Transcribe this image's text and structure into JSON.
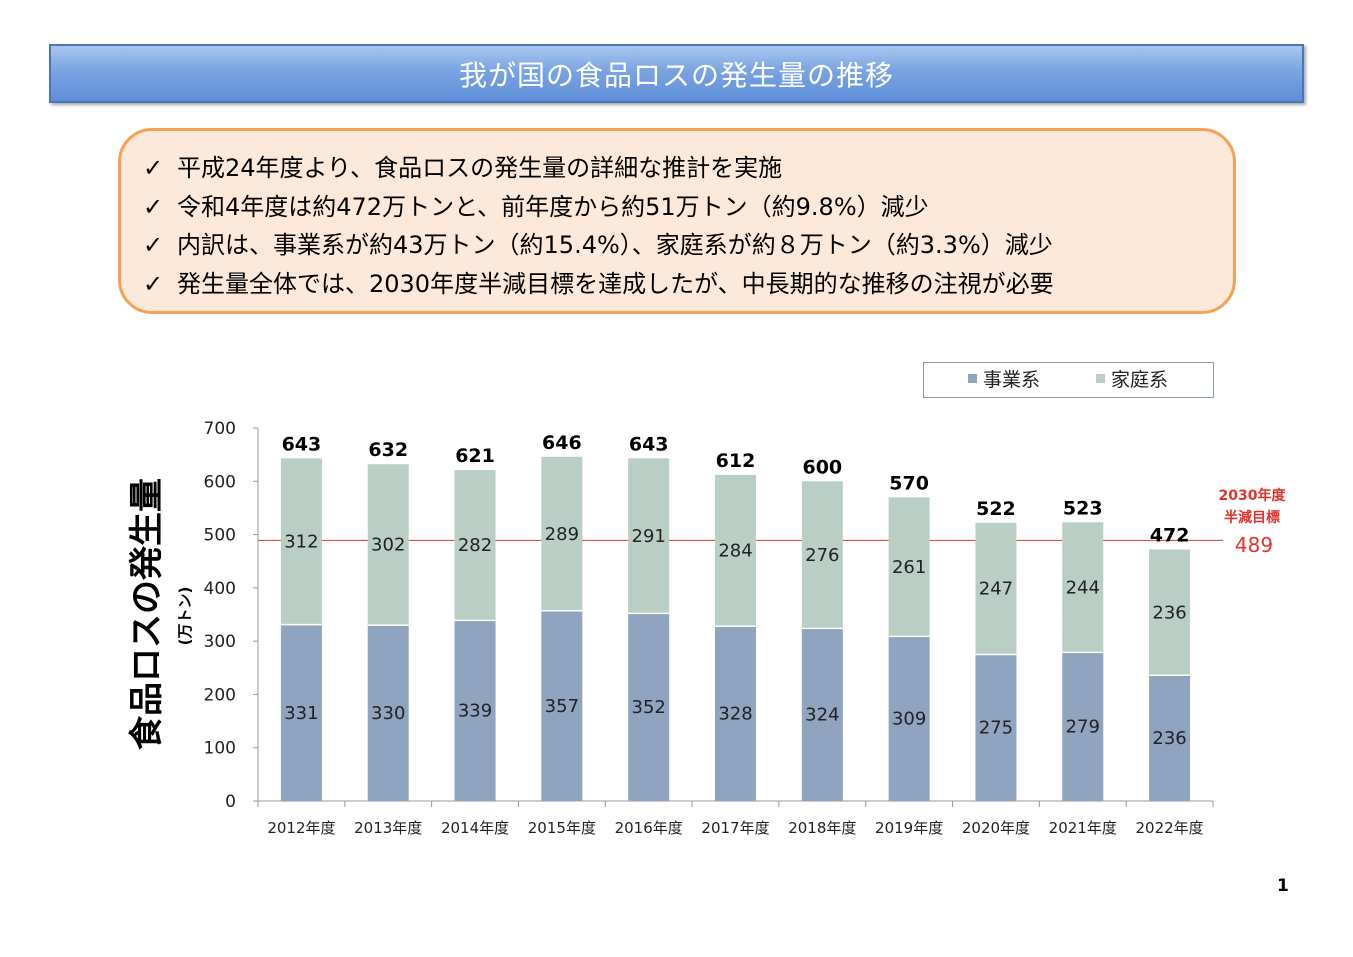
{
  "title": "我が国の食品ロスの発生量の推移",
  "summary": {
    "check_mark": "✓",
    "items": [
      "平成24年度より、食品ロスの発生量の詳細な推計を実施",
      "令和4年度は約472万トンと、前年度から約51万トン（約9.8%）減少",
      "内訳は、事業系が約43万トン（約15.4%）、家庭系が約８万トン（約3.3%）減少",
      "発生量全体では、2030年度半減目標を達成したが、中長期的な推移の注視が必要"
    ]
  },
  "legend": [
    {
      "label": "事業系",
      "color": "#8ea4bf"
    },
    {
      "label": "家庭系",
      "color": "#b9cec4"
    }
  ],
  "chart_data": {
    "type": "bar",
    "stacked": true,
    "ylabel": "食品ロスの発生量",
    "ylabel_unit": "(万トン)",
    "ylim": [
      0,
      700
    ],
    "yticks": [
      0,
      100,
      200,
      300,
      400,
      500,
      600,
      700
    ],
    "categories": [
      "2012年度",
      "2013年度",
      "2014年度",
      "2015年度",
      "2016年度",
      "2017年度",
      "2018年度",
      "2019年度",
      "2020年度",
      "2021年度",
      "2022年度"
    ],
    "series": [
      {
        "name": "事業系",
        "color": "#8ea4bf",
        "values": [
          331,
          330,
          339,
          357,
          352,
          328,
          324,
          309,
          275,
          279,
          236
        ]
      },
      {
        "name": "家庭系",
        "color": "#b9cec4",
        "values": [
          312,
          302,
          282,
          289,
          291,
          284,
          276,
          261,
          247,
          244,
          236
        ]
      }
    ],
    "totals": [
      643,
      632,
      621,
      646,
      643,
      612,
      600,
      570,
      522,
      523,
      472
    ],
    "target": {
      "value": 489,
      "label_line1": "2030年度",
      "label_line2": "半減目標",
      "value_label": "489",
      "color": "#e0342c"
    },
    "legend_position": "top-right",
    "grid": false
  },
  "page_number": "1"
}
